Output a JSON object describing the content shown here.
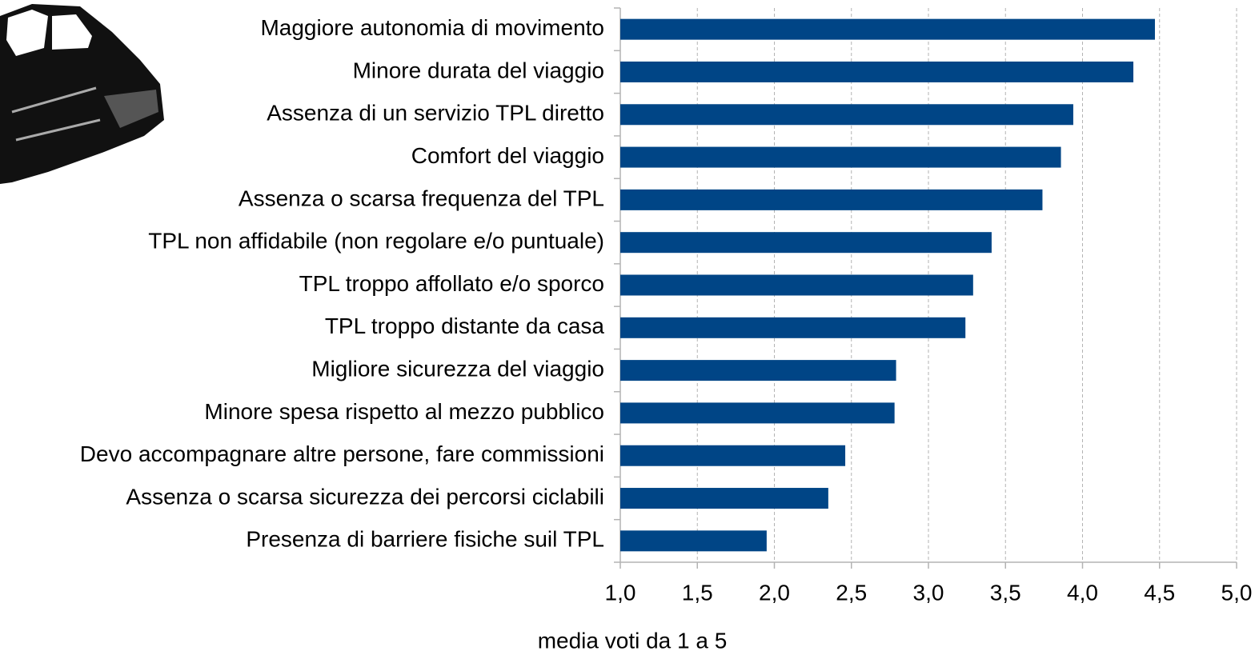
{
  "chart_data": {
    "type": "barh",
    "xlabel": "media voti da 1 a 5",
    "categories": [
      "Maggiore autonomia di movimento",
      "Minore durata del viaggio",
      "Assenza di un servizio TPL diretto",
      "Comfort del viaggio",
      "Assenza o scarsa frequenza del TPL",
      "TPL non affidabile (non regolare e/o puntuale)",
      "TPL troppo affollato e/o sporco",
      "TPL troppo distante da casa",
      "Migliore sicurezza del viaggio",
      "Minore spesa rispetto al mezzo pubblico",
      "Devo accompagnare altre persone, fare commissioni",
      "Assenza o scarsa sicurezza dei percorsi ciclabili",
      "Presenza di barriere fisiche suil TPL"
    ],
    "values": [
      4.47,
      4.33,
      3.94,
      3.86,
      3.74,
      3.41,
      3.29,
      3.24,
      2.79,
      2.78,
      2.46,
      2.35,
      1.95
    ],
    "color": "#004586",
    "xlim": [
      1,
      5
    ],
    "xticks": [
      {
        "value": 1,
        "label": "1,0"
      },
      {
        "value": 1.5,
        "label": "1,5"
      },
      {
        "value": 2,
        "label": "2,0"
      },
      {
        "value": 2.5,
        "label": "2,5"
      },
      {
        "value": 3,
        "label": "3,0"
      },
      {
        "value": 3.5,
        "label": "3,5"
      },
      {
        "value": 4,
        "label": "4,0"
      },
      {
        "value": 4.5,
        "label": "4,5"
      },
      {
        "value": 5,
        "label": "5,0"
      }
    ],
    "grid": true
  }
}
